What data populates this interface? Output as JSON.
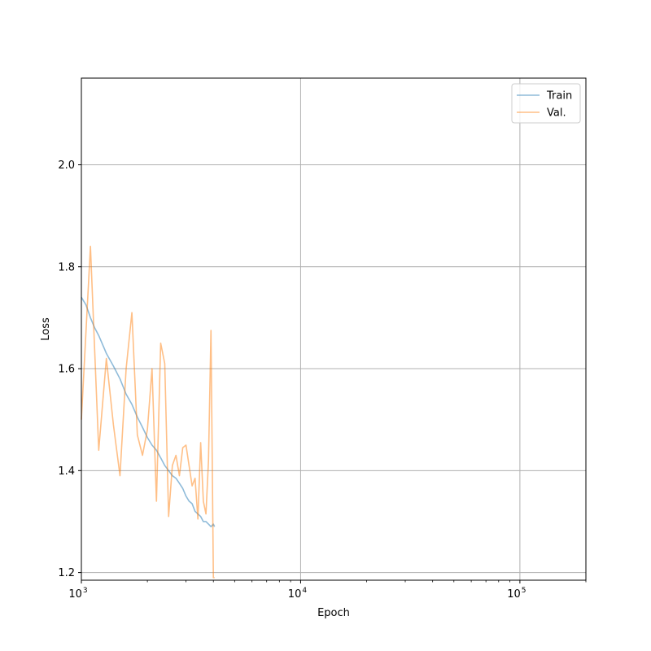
{
  "chart_data": {
    "type": "line",
    "title": "",
    "xlabel": "Epoch",
    "ylabel": "Loss",
    "xscale": "log",
    "xlim": [
      1000,
      200000
    ],
    "ylim": [
      1.185,
      2.17
    ],
    "grid": true,
    "legend_position": "top-right",
    "x_ticks": [
      {
        "value": 1000,
        "base": "10",
        "exp": "3"
      },
      {
        "value": 10000,
        "base": "10",
        "exp": "4"
      },
      {
        "value": 100000,
        "base": "10",
        "exp": "5"
      }
    ],
    "y_ticks": [
      {
        "value": 1.2,
        "label": "1.2"
      },
      {
        "value": 1.4,
        "label": "1.4"
      },
      {
        "value": 1.6,
        "label": "1.6"
      },
      {
        "value": 1.8,
        "label": "1.8"
      },
      {
        "value": 2.0,
        "label": "2.0"
      }
    ],
    "series": [
      {
        "name": "Train",
        "color": "#1f77b4",
        "x": [
          1000,
          1050,
          1100,
          1150,
          1200,
          1300,
          1400,
          1500,
          1600,
          1700,
          1800,
          1900,
          2000,
          2100,
          2200,
          2300,
          2400,
          2500,
          2600,
          2700,
          2800,
          2900,
          3000,
          3100,
          3200,
          3300,
          3400,
          3500,
          3600,
          3700,
          3800,
          3900,
          4000,
          4050
        ],
        "y": [
          1.74,
          1.725,
          1.7,
          1.68,
          1.665,
          1.63,
          1.605,
          1.58,
          1.55,
          1.53,
          1.505,
          1.485,
          1.465,
          1.45,
          1.44,
          1.425,
          1.41,
          1.4,
          1.39,
          1.385,
          1.375,
          1.365,
          1.35,
          1.34,
          1.335,
          1.32,
          1.315,
          1.31,
          1.3,
          1.3,
          1.295,
          1.29,
          1.295,
          1.29
        ]
      },
      {
        "name": "Val.",
        "color": "#ff7f0e",
        "x": [
          1000,
          1100,
          1200,
          1300,
          1400,
          1500,
          1600,
          1700,
          1800,
          1900,
          2000,
          2100,
          2200,
          2300,
          2400,
          2500,
          2600,
          2700,
          2800,
          2900,
          3000,
          3200,
          3300,
          3400,
          3500,
          3600,
          3700,
          3800,
          3900,
          4000,
          4050
        ],
        "y": [
          1.5,
          1.84,
          1.44,
          1.62,
          1.49,
          1.39,
          1.6,
          1.71,
          1.47,
          1.43,
          1.48,
          1.6,
          1.34,
          1.65,
          1.61,
          1.31,
          1.41,
          1.43,
          1.39,
          1.445,
          1.45,
          1.37,
          1.385,
          1.305,
          1.455,
          1.34,
          1.315,
          1.42,
          1.675,
          1.19,
          1.19
        ]
      }
    ]
  }
}
